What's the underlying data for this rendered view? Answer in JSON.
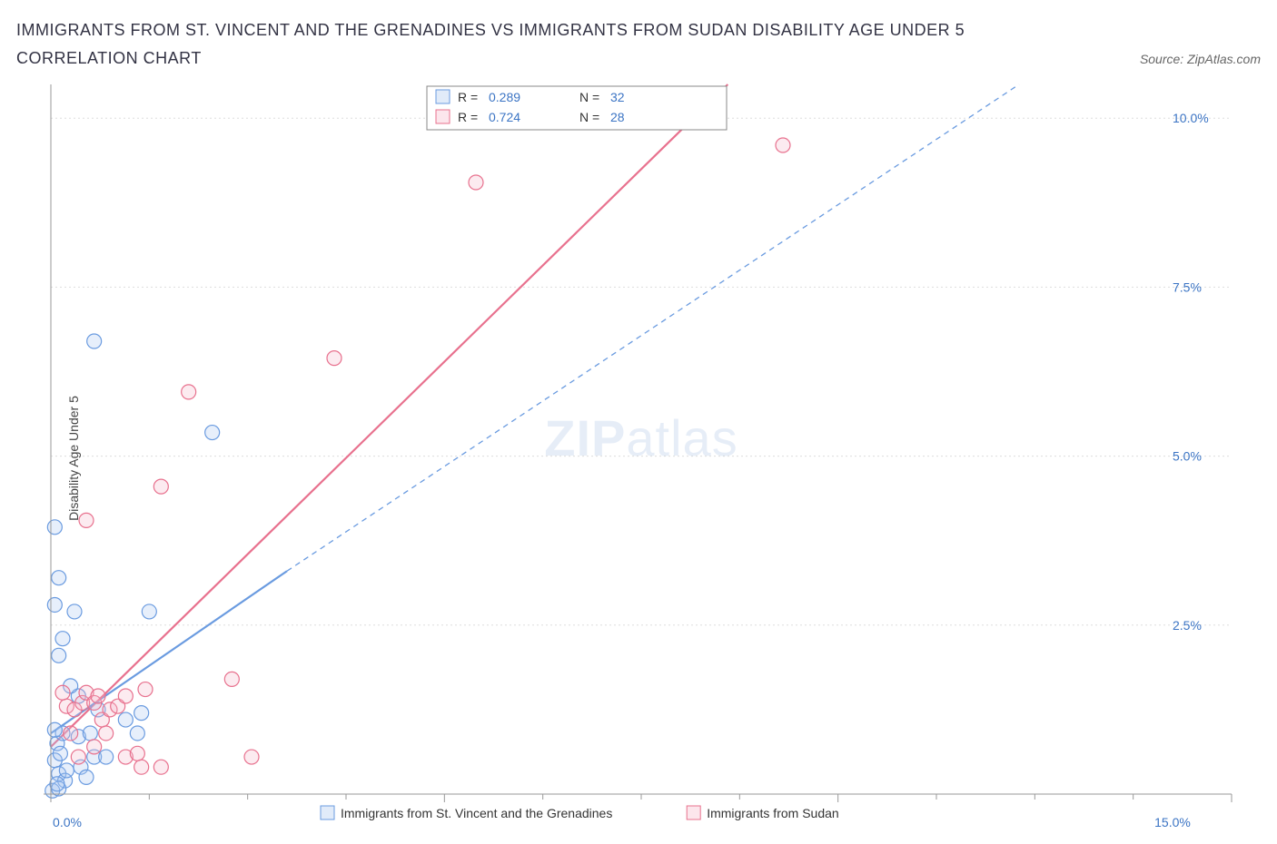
{
  "title": "IMMIGRANTS FROM ST. VINCENT AND THE GRENADINES VS IMMIGRANTS FROM SUDAN DISABILITY AGE UNDER 5 CORRELATION CHART",
  "source_label": "Source: ZipAtlas.com",
  "ylabel": "Disability Age Under 5",
  "watermark_bold": "ZIP",
  "watermark_rest": "atlas",
  "chart": {
    "type": "scatter",
    "background_color": "#ffffff",
    "grid_color": "#dddddd",
    "axis_color": "#999999",
    "tick_label_color": "#3b74c4",
    "xlim": [
      0,
      15
    ],
    "ylim": [
      0,
      10.5
    ],
    "x_ticks": [
      0,
      5,
      10,
      15
    ],
    "x_tick_labels": [
      "0.0%",
      "",
      "",
      "15.0%"
    ],
    "x_minor_ticks": [
      1.25,
      2.5,
      3.75,
      6.25,
      7.5,
      8.75,
      11.25,
      12.5,
      13.75
    ],
    "y_ticks": [
      2.5,
      5.0,
      7.5,
      10.0
    ],
    "y_tick_labels": [
      "2.5%",
      "5.0%",
      "7.5%",
      "10.0%"
    ],
    "marker_radius": 8,
    "marker_opacity": 0.28,
    "title_fontsize": 18,
    "label_fontsize": 14
  },
  "series": [
    {
      "key": "svg_series",
      "label": "Immigrants from St. Vincent and the Grenadines",
      "color_stroke": "#6a9be0",
      "color_fill": "#a9c6ef",
      "R": "0.289",
      "N": "32",
      "trend": {
        "x1": 0,
        "y1": 0.9,
        "x2": 3.0,
        "y2": 3.3,
        "solid_until_x": 3.0,
        "dash_to_x": 12.3,
        "dash_to_y": 10.5
      },
      "points": [
        [
          0.02,
          0.05
        ],
        [
          0.05,
          0.5
        ],
        [
          0.08,
          0.75
        ],
        [
          0.1,
          0.3
        ],
        [
          0.12,
          0.6
        ],
        [
          0.15,
          0.9
        ],
        [
          0.18,
          0.2
        ],
        [
          0.15,
          2.3
        ],
        [
          0.05,
          2.8
        ],
        [
          0.1,
          3.2
        ],
        [
          0.3,
          2.7
        ],
        [
          0.1,
          2.05
        ],
        [
          0.35,
          0.85
        ],
        [
          0.5,
          0.9
        ],
        [
          0.55,
          0.55
        ],
        [
          0.95,
          1.1
        ],
        [
          1.1,
          0.9
        ],
        [
          1.15,
          1.2
        ],
        [
          0.6,
          1.25
        ],
        [
          0.7,
          0.55
        ],
        [
          0.35,
          1.45
        ],
        [
          0.38,
          0.4
        ],
        [
          0.1,
          0.08
        ],
        [
          0.05,
          3.95
        ],
        [
          0.55,
          6.7
        ],
        [
          1.25,
          2.7
        ],
        [
          2.05,
          5.35
        ],
        [
          0.25,
          1.6
        ],
        [
          0.2,
          0.35
        ],
        [
          0.45,
          0.25
        ],
        [
          0.05,
          0.95
        ],
        [
          0.08,
          0.15
        ]
      ]
    },
    {
      "key": "sudan_series",
      "label": "Immigrants from Sudan",
      "color_stroke": "#e8718e",
      "color_fill": "#f6b8c8",
      "R": "0.724",
      "N": "28",
      "trend": {
        "x1": 0,
        "y1": 0.7,
        "x2": 8.6,
        "y2": 10.5,
        "solid_until_x": 8.6,
        "dash_to_x": 8.6,
        "dash_to_y": 10.5
      },
      "points": [
        [
          0.2,
          1.3
        ],
        [
          0.15,
          1.5
        ],
        [
          0.3,
          1.25
        ],
        [
          0.4,
          1.35
        ],
        [
          0.45,
          1.5
        ],
        [
          0.55,
          1.35
        ],
        [
          0.65,
          1.1
        ],
        [
          0.6,
          1.45
        ],
        [
          0.75,
          1.25
        ],
        [
          0.85,
          1.3
        ],
        [
          0.7,
          0.9
        ],
        [
          0.95,
          0.55
        ],
        [
          1.1,
          0.6
        ],
        [
          0.35,
          0.55
        ],
        [
          0.55,
          0.7
        ],
        [
          0.25,
          0.9
        ],
        [
          1.2,
          1.55
        ],
        [
          1.15,
          0.4
        ],
        [
          1.4,
          0.4
        ],
        [
          2.3,
          1.7
        ],
        [
          2.55,
          0.55
        ],
        [
          0.45,
          4.05
        ],
        [
          1.4,
          4.55
        ],
        [
          1.75,
          5.95
        ],
        [
          3.6,
          6.45
        ],
        [
          5.4,
          9.05
        ],
        [
          9.3,
          9.6
        ],
        [
          0.95,
          1.45
        ]
      ]
    }
  ],
  "legend_box": {
    "R_prefix": "R =",
    "N_prefix": "N ="
  },
  "bottom_legend": {
    "items": [
      {
        "series_key": "svg_series"
      },
      {
        "series_key": "sudan_series"
      }
    ]
  }
}
